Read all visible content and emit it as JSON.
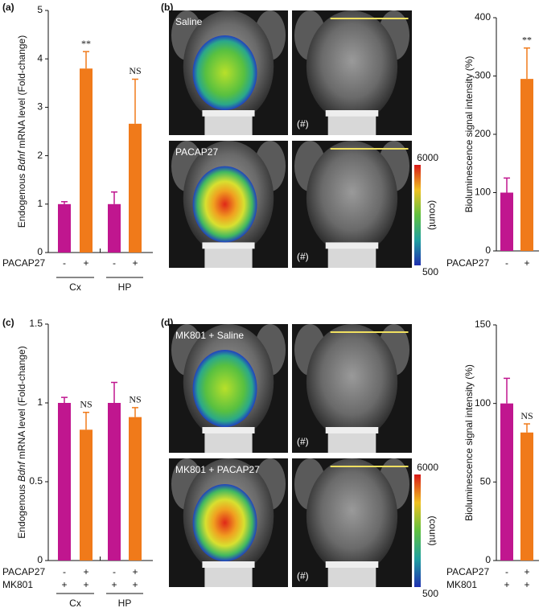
{
  "chart_data": [
    {
      "type": "bar",
      "panel": "(a)",
      "ylabel_parts": [
        "Endogenous ",
        "Bdnf",
        " mRNA level (Fold-change)"
      ],
      "ylim": [
        0,
        5
      ],
      "yticks": [
        0,
        1,
        2,
        3,
        4,
        5
      ],
      "rows": [
        {
          "name": "PACAP27",
          "labels": [
            "-",
            "+",
            "-",
            "+"
          ]
        }
      ],
      "groups": [
        "Cx",
        "HP"
      ],
      "values": [
        1.0,
        3.8,
        1.0,
        2.66
      ],
      "errors": [
        0.05,
        0.35,
        0.25,
        0.92
      ],
      "colors": [
        "#c0168f",
        "#f07a1a",
        "#c0168f",
        "#f07a1a"
      ],
      "annotations": [
        null,
        "**",
        null,
        "NS"
      ]
    },
    {
      "type": "bar",
      "panel": "(b)",
      "ylabel_parts": [
        "Bioluminescence signal intensity (%)"
      ],
      "ylim": [
        0,
        400
      ],
      "yticks": [
        0,
        100,
        200,
        300,
        400
      ],
      "rows": [
        {
          "name": "PACAP27",
          "labels": [
            "-",
            "+"
          ]
        }
      ],
      "groups": [],
      "values": [
        100,
        295
      ],
      "errors": [
        25,
        53
      ],
      "colors": [
        "#c0168f",
        "#f07a1a"
      ],
      "annotations": [
        null,
        "**"
      ]
    },
    {
      "type": "bar",
      "panel": "(c)",
      "ylabel_parts": [
        "Endogenous ",
        "Bdnf",
        " mRNA level (Fold-change)"
      ],
      "ylim": [
        0,
        1.5
      ],
      "yticks": [
        0,
        0.5,
        1,
        1.5
      ],
      "rows": [
        {
          "name": "PACAP27",
          "labels": [
            "-",
            "+",
            "-",
            "+"
          ]
        },
        {
          "name": "MK801",
          "labels": [
            "+",
            "+",
            "+",
            "+"
          ]
        }
      ],
      "groups": [
        "Cx",
        "HP"
      ],
      "values": [
        1.0,
        0.83,
        1.0,
        0.91
      ],
      "errors": [
        0.035,
        0.11,
        0.13,
        0.06
      ],
      "colors": [
        "#c0168f",
        "#f07a1a",
        "#c0168f",
        "#f07a1a"
      ],
      "annotations": [
        null,
        "NS",
        null,
        "NS"
      ]
    },
    {
      "type": "bar",
      "panel": "(d)",
      "ylabel_parts": [
        "Bioluminescence signal intensity (%)"
      ],
      "ylim": [
        0,
        150
      ],
      "yticks": [
        0,
        50,
        100,
        150
      ],
      "rows": [
        {
          "name": "PACAP27",
          "labels": [
            "-",
            "+"
          ]
        },
        {
          "name": "MK801",
          "labels": [
            "+",
            "+"
          ]
        }
      ],
      "groups": [],
      "values": [
        100,
        81.5
      ],
      "errors": [
        16,
        5.5
      ],
      "colors": [
        "#c0168f",
        "#f07a1a"
      ],
      "annotations": [
        null,
        "NS"
      ]
    }
  ],
  "image_panels": [
    {
      "labels": [
        "Saline",
        "PACAP27"
      ],
      "marks": [
        "(#)",
        "(#)"
      ],
      "colorbar": {
        "max": 6000,
        "min": 500,
        "label": "(count)"
      }
    },
    {
      "labels": [
        "MK801 + Saline",
        "MK801 + PACAP27"
      ],
      "marks": [
        "(#)",
        "(#)"
      ],
      "colorbar": {
        "max": 6000,
        "min": 500,
        "label": "(count)"
      }
    }
  ]
}
